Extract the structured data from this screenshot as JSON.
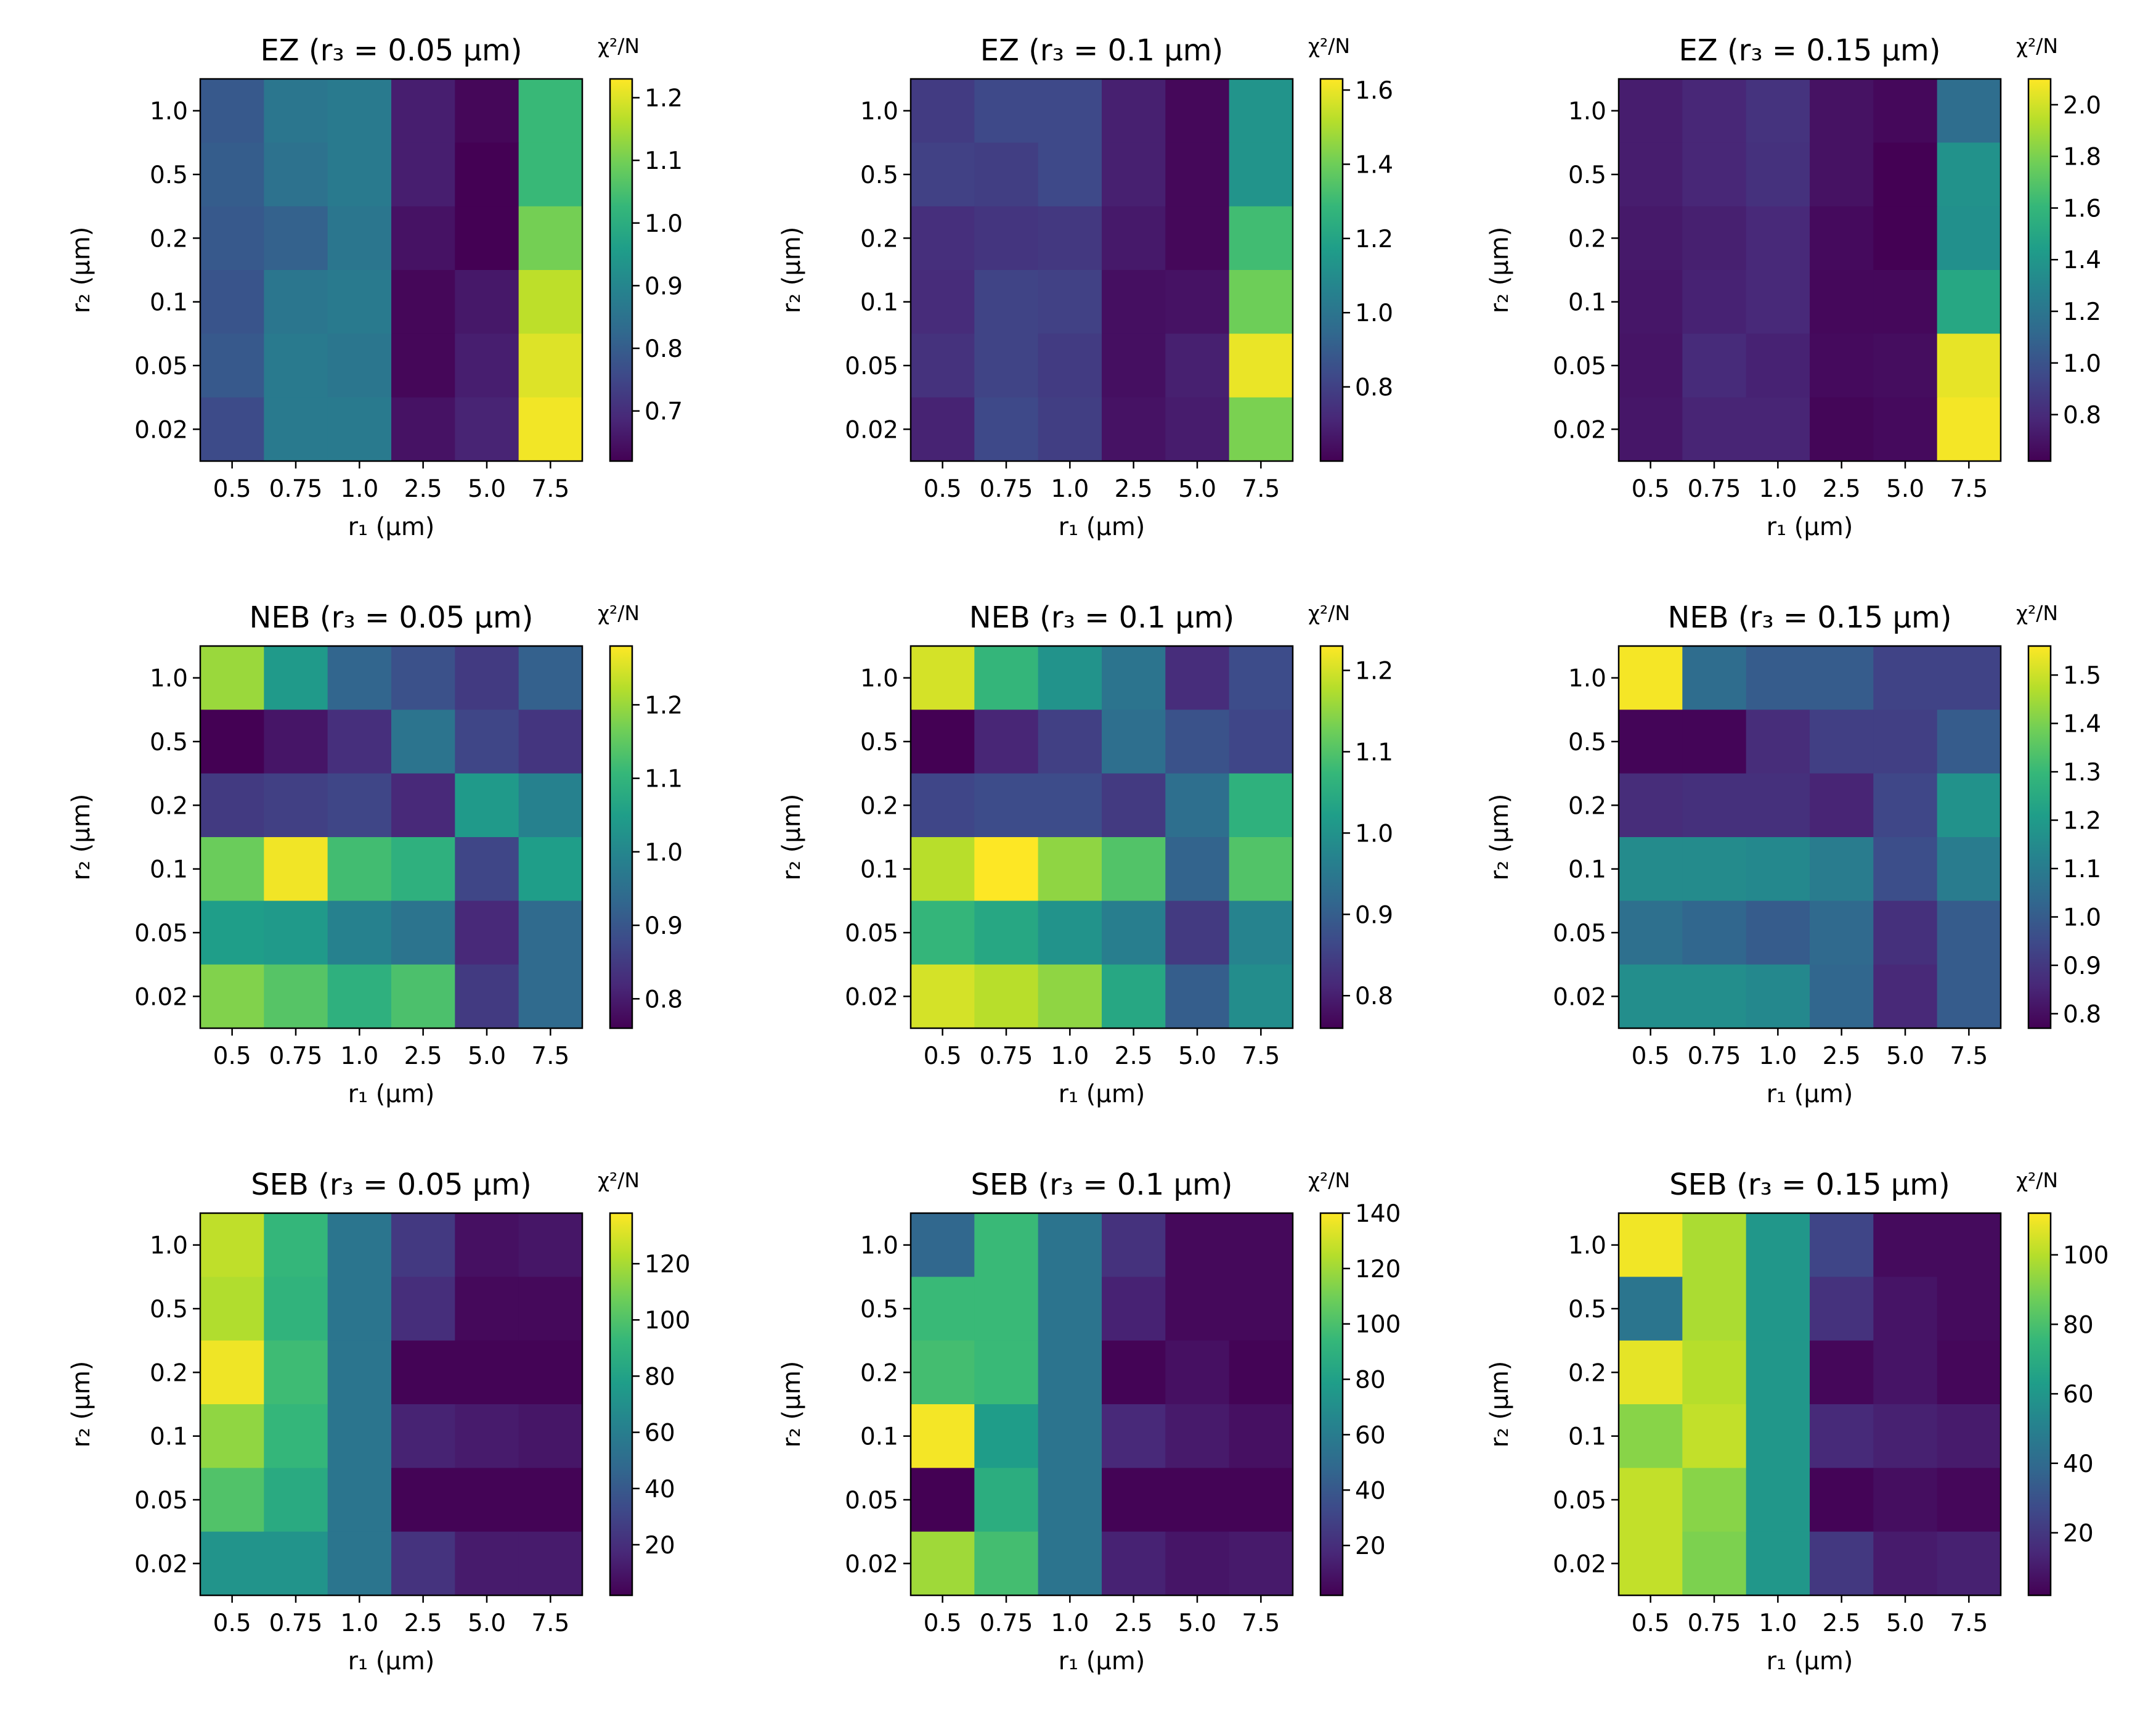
{
  "colormap": [
    "#440154",
    "#482878",
    "#3e4989",
    "#31688e",
    "#26828e",
    "#1f9e89",
    "#35b779",
    "#6ece58",
    "#b5de2b",
    "#fde725"
  ],
  "chart_data": [
    {
      "type": "heatmap",
      "title": "EZ (r₃ = 0.05 μm)",
      "xlabel": "r₁ (μm)",
      "ylabel": "r₂ (μm)",
      "x_categories": [
        "0.5",
        "0.75",
        "1.0",
        "2.5",
        "5.0",
        "7.5"
      ],
      "y_categories": [
        "1.0",
        "0.5",
        "0.2",
        "0.1",
        "0.05",
        "0.02"
      ],
      "colorbar_label": "χ²/N",
      "vmin": 0.62,
      "vmax": 1.23,
      "colorbar_ticks": [
        "0.7",
        "0.8",
        "0.9",
        "1.0",
        "1.1",
        "1.2"
      ],
      "values": [
        [
          0.79,
          0.86,
          0.87,
          0.67,
          0.63,
          1.03
        ],
        [
          0.8,
          0.85,
          0.87,
          0.67,
          0.62,
          1.03
        ],
        [
          0.79,
          0.81,
          0.86,
          0.65,
          0.62,
          1.1
        ],
        [
          0.78,
          0.86,
          0.87,
          0.63,
          0.66,
          1.17
        ],
        [
          0.79,
          0.87,
          0.86,
          0.63,
          0.67,
          1.2
        ],
        [
          0.76,
          0.87,
          0.87,
          0.65,
          0.68,
          1.22
        ]
      ]
    },
    {
      "type": "heatmap",
      "title": "EZ (r₃ = 0.1 μm)",
      "xlabel": "r₁ (μm)",
      "ylabel": "r₂ (μm)",
      "x_categories": [
        "0.5",
        "0.75",
        "1.0",
        "2.5",
        "5.0",
        "7.5"
      ],
      "y_categories": [
        "1.0",
        "0.5",
        "0.2",
        "0.1",
        "0.05",
        "0.02"
      ],
      "colorbar_label": "χ²/N",
      "vmin": 0.6,
      "vmax": 1.63,
      "colorbar_ticks": [
        "0.8",
        "1.0",
        "1.2",
        "1.4",
        "1.6"
      ],
      "values": [
        [
          0.78,
          0.83,
          0.83,
          0.69,
          0.62,
          1.13
        ],
        [
          0.8,
          0.79,
          0.83,
          0.69,
          0.62,
          1.13
        ],
        [
          0.74,
          0.76,
          0.77,
          0.67,
          0.62,
          1.31
        ],
        [
          0.73,
          0.81,
          0.8,
          0.64,
          0.65,
          1.4
        ],
        [
          0.75,
          0.81,
          0.78,
          0.64,
          0.69,
          1.6
        ],
        [
          0.7,
          0.83,
          0.79,
          0.65,
          0.68,
          1.42
        ]
      ]
    },
    {
      "type": "heatmap",
      "title": "EZ (r₃ = 0.15 μm)",
      "xlabel": "r₁ (μm)",
      "ylabel": "r₂ (μm)",
      "x_categories": [
        "0.5",
        "0.75",
        "1.0",
        "2.5",
        "5.0",
        "7.5"
      ],
      "y_categories": [
        "1.0",
        "0.5",
        "0.2",
        "0.1",
        "0.05",
        "0.02"
      ],
      "colorbar_label": "χ²/N",
      "vmin": 0.62,
      "vmax": 2.1,
      "colorbar_ticks": [
        "0.8",
        "1.0",
        "1.2",
        "1.4",
        "1.6",
        "1.8",
        "2.0"
      ],
      "values": [
        [
          0.74,
          0.78,
          0.84,
          0.69,
          0.65,
          1.15
        ],
        [
          0.74,
          0.78,
          0.83,
          0.69,
          0.62,
          1.37
        ],
        [
          0.72,
          0.75,
          0.79,
          0.66,
          0.62,
          1.36
        ],
        [
          0.71,
          0.76,
          0.79,
          0.65,
          0.65,
          1.5
        ],
        [
          0.7,
          0.8,
          0.76,
          0.66,
          0.67,
          2.05
        ],
        [
          0.71,
          0.77,
          0.77,
          0.64,
          0.66,
          2.08
        ]
      ]
    },
    {
      "type": "heatmap",
      "title": "NEB (r₃ = 0.05 μm)",
      "xlabel": "r₁ (μm)",
      "ylabel": "r₂ (μm)",
      "x_categories": [
        "0.5",
        "0.75",
        "1.0",
        "2.5",
        "5.0",
        "7.5"
      ],
      "y_categories": [
        "1.0",
        "0.5",
        "0.2",
        "0.1",
        "0.05",
        "0.02"
      ],
      "colorbar_label": "χ²/N",
      "vmin": 0.76,
      "vmax": 1.28,
      "colorbar_ticks": [
        "0.8",
        "0.9",
        "1.0",
        "1.1",
        "1.2"
      ],
      "values": [
        [
          1.2,
          1.04,
          0.93,
          0.89,
          0.85,
          0.92
        ],
        [
          0.76,
          0.79,
          0.83,
          0.96,
          0.87,
          0.84
        ],
        [
          0.85,
          0.86,
          0.87,
          0.82,
          1.04,
          0.99
        ],
        [
          1.16,
          1.27,
          1.12,
          1.09,
          0.87,
          1.05
        ],
        [
          1.05,
          1.04,
          0.99,
          0.96,
          0.82,
          0.94
        ],
        [
          1.18,
          1.14,
          1.09,
          1.13,
          0.85,
          0.94
        ]
      ]
    },
    {
      "type": "heatmap",
      "title": "NEB (r₃ = 0.1 μm)",
      "xlabel": "r₁ (μm)",
      "ylabel": "r₂ (μm)",
      "x_categories": [
        "0.5",
        "0.75",
        "1.0",
        "2.5",
        "5.0",
        "7.5"
      ],
      "y_categories": [
        "1.0",
        "0.5",
        "0.2",
        "0.1",
        "0.05",
        "0.02"
      ],
      "colorbar_label": "χ²/N",
      "vmin": 0.76,
      "vmax": 1.23,
      "colorbar_ticks": [
        "0.8",
        "0.9",
        "1.0",
        "1.1",
        "1.2"
      ],
      "values": [
        [
          1.2,
          1.07,
          1.0,
          0.94,
          0.82,
          0.87
        ],
        [
          0.76,
          0.81,
          0.85,
          0.93,
          0.88,
          0.86
        ],
        [
          0.86,
          0.87,
          0.87,
          0.84,
          0.93,
          1.06
        ],
        [
          1.18,
          1.23,
          1.15,
          1.1,
          0.91,
          1.1
        ],
        [
          1.07,
          1.04,
          1.0,
          0.96,
          0.84,
          0.97
        ],
        [
          1.2,
          1.18,
          1.15,
          1.04,
          0.9,
          0.99
        ]
      ]
    },
    {
      "type": "heatmap",
      "title": "NEB (r₃ = 0.15 μm)",
      "xlabel": "r₁ (μm)",
      "ylabel": "r₂ (μm)",
      "x_categories": [
        "0.5",
        "0.75",
        "1.0",
        "2.5",
        "5.0",
        "7.5"
      ],
      "y_categories": [
        "1.0",
        "0.5",
        "0.2",
        "0.1",
        "0.05",
        "0.02"
      ],
      "colorbar_label": "χ²/N",
      "vmin": 0.77,
      "vmax": 1.56,
      "colorbar_ticks": [
        "0.8",
        "0.9",
        "1.0",
        "1.1",
        "1.2",
        "1.3",
        "1.4",
        "1.5"
      ],
      "values": [
        [
          1.55,
          1.05,
          1.0,
          1.0,
          0.93,
          0.93
        ],
        [
          0.78,
          0.78,
          0.87,
          0.92,
          0.92,
          1.0
        ],
        [
          0.87,
          0.88,
          0.88,
          0.85,
          0.94,
          1.17
        ],
        [
          1.15,
          1.15,
          1.14,
          1.1,
          0.96,
          1.1
        ],
        [
          1.06,
          1.03,
          1.0,
          1.04,
          0.88,
          1.0
        ],
        [
          1.16,
          1.16,
          1.14,
          1.03,
          0.86,
          1.0
        ]
      ]
    },
    {
      "type": "heatmap",
      "title": "SEB (r₃ = 0.05 μm)",
      "xlabel": "r₁ (μm)",
      "ylabel": "r₂ (μm)",
      "x_categories": [
        "0.5",
        "0.75",
        "1.0",
        "2.5",
        "5.0",
        "7.5"
      ],
      "y_categories": [
        "1.0",
        "0.5",
        "0.2",
        "0.1",
        "0.05",
        "0.02"
      ],
      "colorbar_label": "χ²/N",
      "vmin": 2,
      "vmax": 138,
      "colorbar_ticks": [
        "20",
        "40",
        "60",
        "80",
        "100",
        "120"
      ],
      "values": [
        [
          125,
          92,
          55,
          25,
          8,
          10
        ],
        [
          122,
          90,
          55,
          20,
          5,
          5
        ],
        [
          135,
          95,
          55,
          3,
          3,
          3
        ],
        [
          115,
          92,
          55,
          15,
          12,
          10
        ],
        [
          100,
          85,
          55,
          3,
          3,
          3
        ],
        [
          72,
          72,
          55,
          22,
          12,
          12
        ]
      ]
    },
    {
      "type": "heatmap",
      "title": "SEB (r₃ = 0.1 μm)",
      "xlabel": "r₁ (μm)",
      "ylabel": "r₂ (μm)",
      "x_categories": [
        "0.5",
        "0.75",
        "1.0",
        "2.5",
        "5.0",
        "7.5"
      ],
      "y_categories": [
        "1.0",
        "0.5",
        "0.2",
        "0.1",
        "0.05",
        "0.02"
      ],
      "colorbar_label": "χ²/N",
      "vmin": 2,
      "vmax": 140,
      "colorbar_ticks": [
        "20",
        "40",
        "60",
        "80",
        "100",
        "120",
        "140"
      ],
      "values": [
        [
          48,
          95,
          55,
          22,
          5,
          5
        ],
        [
          95,
          95,
          55,
          15,
          5,
          5
        ],
        [
          98,
          95,
          55,
          3,
          8,
          3
        ],
        [
          138,
          78,
          55,
          18,
          12,
          8
        ],
        [
          2,
          88,
          55,
          3,
          3,
          3
        ],
        [
          120,
          98,
          55,
          15,
          10,
          12
        ]
      ]
    },
    {
      "type": "heatmap",
      "title": "SEB (r₃ = 0.15 μm)",
      "xlabel": "r₁ (μm)",
      "ylabel": "r₂ (μm)",
      "x_categories": [
        "0.5",
        "0.75",
        "1.0",
        "2.5",
        "5.0",
        "7.5"
      ],
      "y_categories": [
        "1.0",
        "0.5",
        "0.2",
        "0.1",
        "0.05",
        "0.02"
      ],
      "colorbar_label": "χ²/N",
      "vmin": 2,
      "vmax": 112,
      "colorbar_ticks": [
        "20",
        "40",
        "60",
        "80",
        "100"
      ],
      "values": [
        [
          110,
          98,
          60,
          25,
          5,
          5
        ],
        [
          45,
          98,
          60,
          18,
          8,
          5
        ],
        [
          108,
          100,
          60,
          4,
          8,
          4
        ],
        [
          92,
          102,
          60,
          15,
          12,
          10
        ],
        [
          102,
          92,
          60,
          3,
          6,
          4
        ],
        [
          102,
          90,
          60,
          20,
          10,
          12
        ]
      ]
    }
  ]
}
